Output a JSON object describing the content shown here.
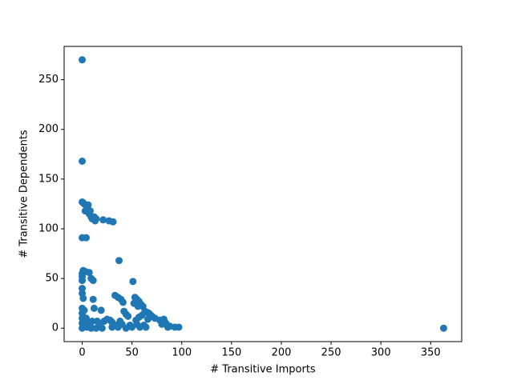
{
  "chart_data": {
    "type": "scatter",
    "x_label": "# Transitive Imports",
    "y_label": "# Transitive Dependents",
    "color": "#1f77b4",
    "x": [
      0,
      0,
      0,
      1,
      2,
      4,
      6,
      8,
      5,
      3,
      7,
      9,
      10,
      12,
      14,
      13,
      21,
      27,
      31,
      0,
      4,
      37,
      51,
      1,
      3,
      0,
      0,
      0,
      7,
      9,
      11,
      0,
      0,
      1,
      33,
      36,
      39,
      41,
      53,
      55,
      57,
      59,
      61,
      52,
      56,
      63,
      65,
      67,
      69,
      73,
      78,
      82,
      84,
      88,
      93,
      97,
      0,
      0,
      0,
      0,
      0,
      1,
      3,
      5,
      8,
      10,
      11,
      12,
      15,
      19,
      18,
      22,
      25,
      28,
      30,
      34,
      36,
      38,
      40,
      42,
      44,
      46,
      48,
      50,
      55,
      58,
      60,
      62,
      64,
      66,
      70,
      80,
      86,
      363,
      2,
      4,
      6,
      9,
      14,
      20,
      30,
      44,
      54,
      57
    ],
    "values": [
      270,
      168,
      127,
      126,
      125,
      124,
      124,
      118,
      120,
      118,
      115,
      112,
      110,
      112,
      110,
      108,
      109,
      108,
      107,
      91,
      91,
      68,
      47,
      58,
      57,
      55,
      52,
      48,
      56,
      50,
      48,
      40,
      35,
      30,
      33,
      31,
      29,
      26,
      31,
      29,
      27,
      24,
      22,
      25,
      22,
      17,
      16,
      15,
      13,
      10,
      8,
      9,
      5,
      2,
      1,
      1,
      20,
      15,
      10,
      5,
      0,
      2,
      4,
      1,
      2,
      7,
      29,
      20,
      7,
      18,
      2,
      7,
      9,
      8,
      6,
      3,
      1,
      7,
      4,
      17,
      14,
      12,
      3,
      1,
      4,
      1,
      13,
      3,
      1,
      9,
      12,
      4,
      1,
      0,
      18,
      10,
      6,
      0,
      0,
      0,
      1,
      0,
      8,
      11
    ],
    "xlim": [
      -18.15,
      381.15
    ],
    "ylim": [
      -13.5,
      283.5
    ],
    "xticks": [
      0,
      50,
      100,
      150,
      200,
      250,
      300,
      350
    ],
    "yticks": [
      0,
      50,
      100,
      150,
      200,
      250
    ]
  }
}
